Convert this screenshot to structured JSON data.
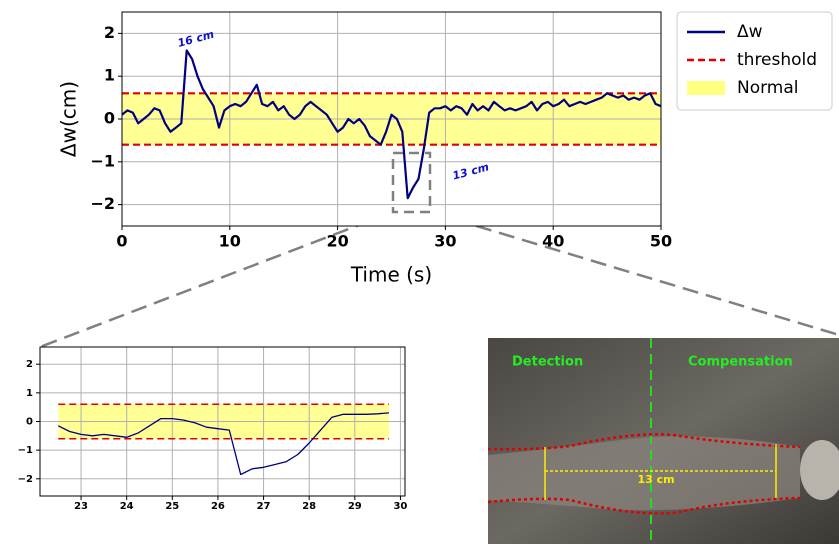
{
  "chart_data": [
    {
      "type": "line",
      "xlabel": "Time (s)",
      "ylabel": "Δw(cm)",
      "xlim": [
        0,
        50
      ],
      "ylim": [
        -2.5,
        2.5
      ],
      "xticks": [
        0,
        10,
        20,
        30,
        40,
        50
      ],
      "yticks": [
        {
          "value": -2,
          "label": "−2"
        },
        {
          "value": -1,
          "label": "−1"
        },
        0,
        1,
        2
      ],
      "grid": true,
      "legend": true,
      "x": [
        0,
        0.5,
        1,
        1.5,
        2,
        2.5,
        3,
        3.5,
        4,
        4.5,
        5,
        5.5,
        6,
        6.5,
        7,
        7.5,
        8,
        8.5,
        9,
        9.5,
        10,
        10.5,
        11,
        11.5,
        12,
        12.5,
        13,
        13.5,
        14,
        14.5,
        15,
        15.5,
        16,
        16.5,
        17,
        17.5,
        18,
        18.5,
        19,
        19.5,
        20,
        20.5,
        21,
        21.5,
        22,
        22.5,
        23,
        23.5,
        24,
        24.5,
        25,
        25.5,
        26,
        26.5,
        27,
        27.5,
        28,
        28.5,
        29,
        29.5,
        30,
        30.5,
        31,
        31.5,
        32,
        32.5,
        33,
        33.5,
        34,
        34.5,
        35,
        35.5,
        36,
        36.5,
        37,
        37.5,
        38,
        38.5,
        39,
        39.5,
        40,
        40.5,
        41,
        41.5,
        42,
        42.5,
        43,
        43.5,
        44,
        44.5,
        45,
        45.5,
        46,
        46.5,
        47,
        47.5,
        48,
        48.5,
        49,
        49.5,
        50
      ],
      "series": [
        {
          "name": "Δw",
          "color": "#000080",
          "values": [
            0.1,
            0.2,
            0.15,
            -0.1,
            0,
            0.1,
            0.25,
            0.2,
            -0.1,
            -0.3,
            -0.2,
            -0.1,
            1.6,
            1.4,
            1.0,
            0.7,
            0.5,
            0.3,
            -0.2,
            0.2,
            0.3,
            0.35,
            0.3,
            0.4,
            0.6,
            0.8,
            0.35,
            0.3,
            0.4,
            0.2,
            0.3,
            0.1,
            0.0,
            0.1,
            0.3,
            0.4,
            0.3,
            0.2,
            0.1,
            -0.1,
            -0.3,
            -0.2,
            0.0,
            -0.1,
            0.0,
            -0.15,
            -0.4,
            -0.5,
            -0.6,
            -0.3,
            0.1,
            0.0,
            -0.3,
            -1.85,
            -1.6,
            -1.4,
            -0.7,
            0.15,
            0.25,
            0.25,
            0.3,
            0.2,
            0.3,
            0.25,
            0.1,
            0.35,
            0.2,
            0.3,
            0.2,
            0.4,
            0.3,
            0.2,
            0.25,
            0.2,
            0.25,
            0.3,
            0.4,
            0.2,
            0.35,
            0.4,
            0.3,
            0.35,
            0.45,
            0.3,
            0.35,
            0.4,
            0.35,
            0.4,
            0.45,
            0.5,
            0.6,
            0.55,
            0.5,
            0.55,
            0.45,
            0.5,
            0.45,
            0.55,
            0.6,
            0.35,
            0.3
          ]
        }
      ],
      "threshold": {
        "name": "threshold",
        "color": "#e00000",
        "values": [
          -0.6,
          0.6
        ]
      },
      "band": {
        "name": "Normal",
        "color": "#ffff80"
      },
      "annotations": [
        "16 cm",
        "13 cm"
      ]
    },
    {
      "type": "line",
      "xlim": [
        22.1,
        30.1
      ],
      "ylim": [
        -2.6,
        2.6
      ],
      "xticks": [
        23,
        24,
        25,
        26,
        27,
        28,
        29,
        30
      ],
      "yticks": [
        {
          "value": -2,
          "label": "−2"
        },
        {
          "value": -1,
          "label": "−1"
        },
        0,
        1,
        2
      ],
      "grid": true,
      "x": [
        22.5,
        22.75,
        23,
        23.25,
        23.5,
        23.75,
        24,
        24.25,
        24.5,
        24.75,
        25,
        25.25,
        25.5,
        25.75,
        26,
        26.25,
        26.5,
        26.75,
        27,
        27.25,
        27.5,
        27.75,
        28,
        28.25,
        28.5,
        28.75,
        29,
        29.25,
        29.5,
        29.75
      ],
      "series": [
        {
          "color": "#000080",
          "values": [
            -0.15,
            -0.35,
            -0.45,
            -0.5,
            -0.45,
            -0.5,
            -0.55,
            -0.4,
            -0.15,
            0.1,
            0.1,
            0.05,
            -0.05,
            -0.2,
            -0.25,
            -0.3,
            -1.85,
            -1.65,
            -1.6,
            -1.5,
            -1.4,
            -1.15,
            -0.75,
            -0.3,
            0.15,
            0.25,
            0.25,
            0.25,
            0.27,
            0.3
          ]
        }
      ],
      "threshold": {
        "color": "#e00000",
        "values": [
          -0.6,
          0.6
        ]
      },
      "band": {
        "color": "#ffff80"
      }
    }
  ],
  "photo": {
    "labels": [
      "Detection",
      "Compensation",
      "13 cm"
    ]
  }
}
